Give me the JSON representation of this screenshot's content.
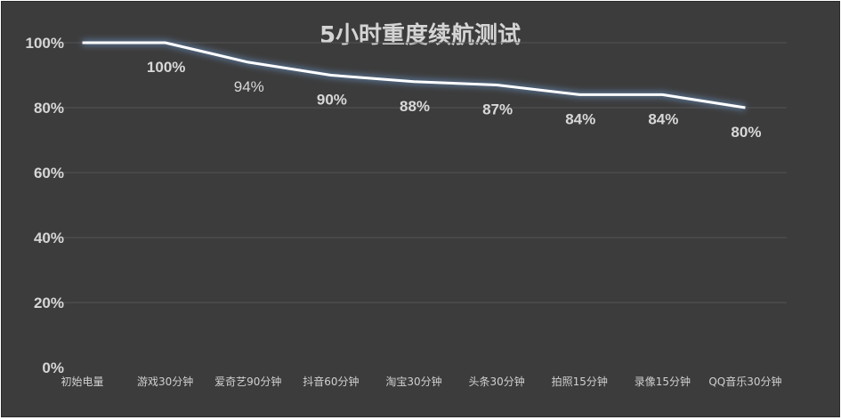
{
  "chart_data": {
    "type": "line",
    "title": "5小时重度续航测试",
    "xlabel": "",
    "ylabel": "",
    "categories": [
      "初始电量",
      "游戏30分钟",
      "爱奇艺90分钟",
      "抖音60分钟",
      "淘宝30分钟",
      "头条30分钟",
      "拍照15分钟",
      "录像15分钟",
      "QQ音乐30分钟"
    ],
    "series": [
      {
        "values": [
          100,
          100,
          94,
          90,
          88,
          87,
          84,
          84,
          80
        ]
      }
    ],
    "data_labels": [
      "",
      "100%",
      "94%",
      "90%",
      "88%",
      "87%",
      "84%",
      "84%",
      "80%"
    ],
    "y_ticks": [
      "0%",
      "20%",
      "40%",
      "60%",
      "80%",
      "100%"
    ],
    "ylim": [
      0,
      100
    ],
    "grid": true,
    "legend": "none",
    "colors": {
      "background": "#3c3c3c",
      "line": "#ffffff",
      "glow": "#6f9fd8",
      "grid": "#555555",
      "text": "#d6d6d6"
    }
  }
}
